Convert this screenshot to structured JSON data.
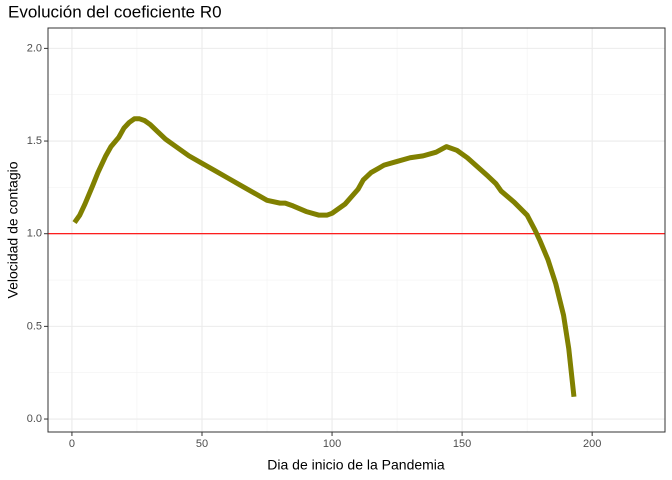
{
  "chart_data": {
    "type": "line",
    "title": "Evolución del coeficiente R0",
    "x_label": "Dia de inicio de la Pandemia",
    "y_label": "Velocidad de contagio",
    "x": [
      1,
      3,
      5,
      8,
      10,
      13,
      15,
      18,
      20,
      22,
      24,
      26,
      28,
      30,
      33,
      36,
      40,
      45,
      50,
      55,
      60,
      65,
      70,
      75,
      80,
      82,
      85,
      90,
      95,
      98,
      100,
      105,
      110,
      112,
      115,
      120,
      125,
      130,
      135,
      140,
      144,
      148,
      152,
      156,
      160,
      163,
      165,
      170,
      175,
      178,
      180,
      183,
      186,
      189,
      191,
      193
    ],
    "series": [
      {
        "color": "#808000",
        "values": [
          1.06,
          1.1,
          1.16,
          1.26,
          1.33,
          1.42,
          1.47,
          1.52,
          1.57,
          1.6,
          1.62,
          1.62,
          1.61,
          1.59,
          1.55,
          1.51,
          1.47,
          1.42,
          1.38,
          1.34,
          1.3,
          1.26,
          1.22,
          1.18,
          1.165,
          1.165,
          1.15,
          1.12,
          1.1,
          1.1,
          1.11,
          1.16,
          1.24,
          1.29,
          1.33,
          1.37,
          1.39,
          1.41,
          1.42,
          1.44,
          1.47,
          1.45,
          1.41,
          1.36,
          1.31,
          1.27,
          1.23,
          1.17,
          1.1,
          1.02,
          0.96,
          0.86,
          0.73,
          0.56,
          0.38,
          0.12
        ]
      }
    ],
    "hline": 1,
    "hline_color": "#ff0000",
    "xlim": [
      -9.2,
      228
    ],
    "ylim": [
      -0.07,
      2.11
    ],
    "xticks": [
      0,
      50,
      100,
      150,
      200
    ],
    "yticks": [
      {
        "value": 0,
        "label": "0.0"
      },
      {
        "value": 0.5,
        "label": "0.5"
      },
      {
        "value": 1,
        "label": "1.0"
      },
      {
        "value": 1.5,
        "label": "1.5"
      },
      {
        "value": 2,
        "label": "2.0"
      }
    ],
    "grid": true
  }
}
